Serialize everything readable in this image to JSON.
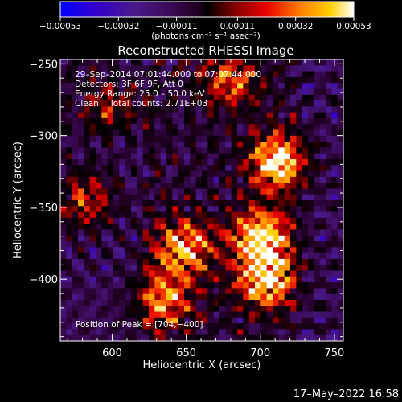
{
  "chart_data": {
    "type": "heatmap",
    "title": "Reconstructed RHESSI Image",
    "xlabel": "Heliocentric X (arcsec)",
    "ylabel": "Heliocentric Y (arcsec)",
    "xlim": [
      565,
      756
    ],
    "ylim": [
      -443,
      -247
    ],
    "x_ticks": [
      {
        "value": 600,
        "label": "600"
      },
      {
        "value": 650,
        "label": "650"
      },
      {
        "value": 700,
        "label": "700"
      },
      {
        "value": 750,
        "label": "750"
      }
    ],
    "y_ticks": [
      {
        "value": -250,
        "label": "−250"
      },
      {
        "value": -300,
        "label": "−300"
      },
      {
        "value": -350,
        "label": "−350"
      },
      {
        "value": -400,
        "label": "−400"
      }
    ],
    "colorbar": {
      "min": -0.00053,
      "max": 0.00053,
      "ticks": [
        {
          "value": -0.00053,
          "label": "−0.00053"
        },
        {
          "value": -0.00032,
          "label": "−0.00032"
        },
        {
          "value": -0.00011,
          "label": "−0.00011"
        },
        {
          "value": 0.00011,
          "label": "0.00011"
        },
        {
          "value": 0.00032,
          "label": "0.00032"
        },
        {
          "value": 0.00053,
          "label": "0.00053"
        }
      ],
      "unit_label": "(photons cm⁻² s⁻¹ asec⁻²)",
      "colormap": [
        "#0000ff",
        "#3300cc",
        "#4a1a8c",
        "#3a0a55",
        "#200020",
        "#000000",
        "#880000",
        "#e80000",
        "#ff8000",
        "#ffd000",
        "#ffffff"
      ]
    },
    "info_lines": [
      "29–Sep–2014 07:01:44.000 to 07:07:44.000",
      "Detectors: 3F 6F 9F, Att 0",
      "Energy Range: 25.0 – 50.0 keV",
      "Clean    Total counts: 2.71E+03"
    ],
    "peak_label": "Position of Peak = [704,−400]",
    "peak": {
      "x": 704,
      "y": -400
    },
    "bright_regions": [
      {
        "x": 712,
        "y": -318,
        "intensity": 1.0
      },
      {
        "x": 700,
        "y": -370,
        "intensity": 0.95
      },
      {
        "x": 704,
        "y": -400,
        "intensity": 1.0
      },
      {
        "x": 648,
        "y": -378,
        "intensity": 0.85
      },
      {
        "x": 635,
        "y": -415,
        "intensity": 0.7
      },
      {
        "x": 582,
        "y": -345,
        "intensity": 0.6
      },
      {
        "x": 680,
        "y": -262,
        "intensity": 0.6
      },
      {
        "x": 600,
        "y": -280,
        "intensity": 0.45
      }
    ]
  },
  "footer_timestamp": "17–May–2022 16:58"
}
